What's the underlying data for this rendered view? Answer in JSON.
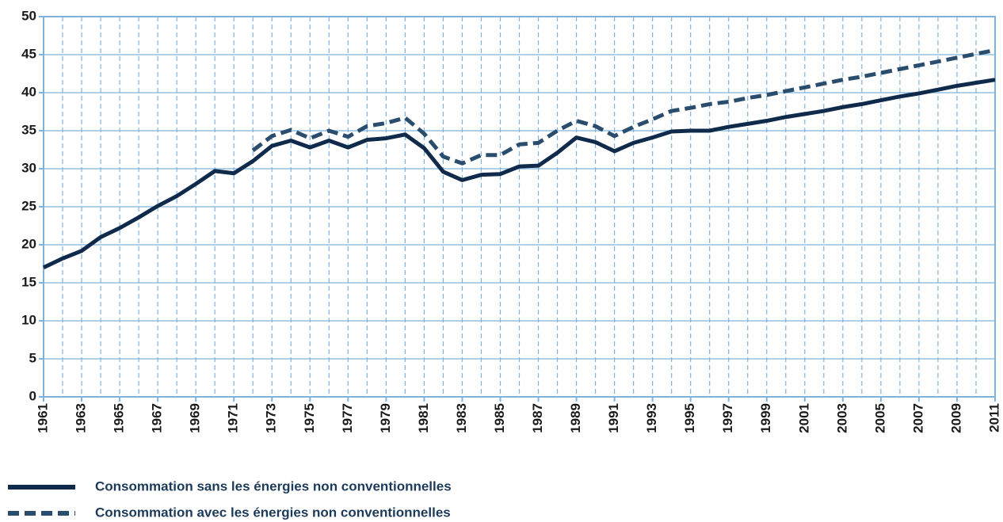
{
  "chart_data": {
    "type": "line",
    "x": [
      1961,
      1962,
      1963,
      1964,
      1965,
      1966,
      1967,
      1968,
      1969,
      1970,
      1971,
      1972,
      1973,
      1974,
      1975,
      1976,
      1977,
      1978,
      1979,
      1980,
      1981,
      1982,
      1983,
      1984,
      1985,
      1986,
      1987,
      1988,
      1989,
      1990,
      1991,
      1992,
      1993,
      1994,
      1995,
      1996,
      1997,
      1998,
      1999,
      2000,
      2001,
      2002,
      2003,
      2004,
      2005,
      2006,
      2007,
      2008,
      2009,
      2010,
      2011
    ],
    "series": [
      {
        "name": "Consommation sans les énergies non conventionnelles",
        "color": "#0f2a4a",
        "dash": false,
        "values": [
          17,
          18.2,
          19.2,
          21,
          22.2,
          23.6,
          25.1,
          26.4,
          28,
          29.7,
          29.4,
          31,
          33,
          33.7,
          32.8,
          33.7,
          32.8,
          33.8,
          34,
          34.5,
          32.7,
          29.6,
          28.5,
          29.2,
          29.3,
          30.3,
          30.4,
          32.1,
          34.1,
          33.5,
          32.3,
          33.4,
          34.1,
          34.9,
          35,
          35,
          35.5,
          35.9,
          36.3,
          36.8,
          37.2,
          37.6,
          38.1,
          38.5,
          39,
          39.5,
          39.9,
          40.4,
          40.9,
          41.3,
          41.7
        ]
      },
      {
        "name": "Consommation avec les énergies non conventionnelles",
        "color": "#2a4d6e",
        "dash": true,
        "values": [
          null,
          null,
          null,
          null,
          null,
          null,
          null,
          null,
          null,
          null,
          null,
          32.4,
          34.3,
          35.1,
          34,
          35,
          34.2,
          35.6,
          36,
          36.7,
          34.6,
          31.6,
          30.7,
          31.8,
          31.8,
          33.2,
          33.4,
          35,
          36.3,
          35.6,
          34.3,
          35.5,
          36.5,
          37.6,
          38,
          38.5,
          38.8,
          39.3,
          39.7,
          40.2,
          40.7,
          41.2,
          41.7,
          42.1,
          42.6,
          43.1,
          43.6,
          44.1,
          44.6,
          45.1,
          45.6
        ]
      }
    ],
    "xlim": [
      1961,
      2011
    ],
    "xticks": [
      1961,
      1963,
      1965,
      1967,
      1969,
      1971,
      1973,
      1975,
      1977,
      1979,
      1981,
      1983,
      1985,
      1987,
      1989,
      1991,
      1993,
      1995,
      1997,
      1999,
      2001,
      2003,
      2005,
      2007,
      2009,
      2011
    ],
    "ylim": [
      0,
      50
    ],
    "yticks": [
      0,
      5,
      10,
      15,
      20,
      25,
      30,
      35,
      40,
      45,
      50
    ],
    "grid": true,
    "legend": "bottom"
  }
}
